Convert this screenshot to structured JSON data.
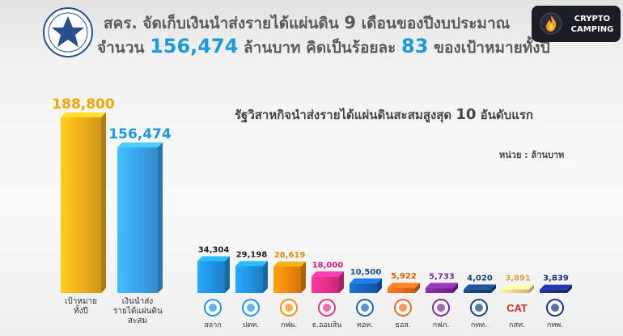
{
  "header": {
    "title_line1_prefix": "สคร. จัดเก็บเงินนำส่งรายได้แผ่นดิน",
    "title_line1_num": "9",
    "title_line1_suffix": "เดือนของปีงบประมาณ",
    "title_line2_prefix": "จำนวน",
    "title_line2_amount": "156,474",
    "title_line2_mid": "ล้านบาท คิดเป็นร้อยละ",
    "title_line2_pct": "83",
    "title_line2_suffix": "ของเป้าหมายทั้งปี"
  },
  "badge": {
    "line1": "CRYPTO",
    "line2": "CAMPING"
  },
  "chart_data": [
    {
      "type": "bar",
      "categories": [
        "เป้าหมายทั้งปี",
        "เงินนำส่งรายได้แผ่นดินสะสม"
      ],
      "category_lines": [
        [
          "เป้าหมาย",
          "ทั้งปี"
        ],
        [
          "เงินนำส่ง",
          "รายได้แผ่นดิน",
          "สะสม"
        ]
      ],
      "values": [
        188800,
        156474
      ],
      "labels": [
        "188,800",
        "156,474"
      ],
      "colors": [
        "#f5b21b",
        "#3aa6f0"
      ],
      "label_colors": [
        "#f0a500",
        "#1a9be0"
      ]
    },
    {
      "type": "bar",
      "title": "รัฐวิสาหกิจนำส่งรายได้แผ่นดินสะสมสูงสุด",
      "title_num": "10",
      "title_suffix": "อันดับแรก",
      "unit": "หน่วย : ล้านบาท",
      "categories": [
        "สลาก",
        "ปตท.",
        "กฟผ.",
        "ธ.ออมสิน",
        "ทอท.",
        "ธอส.",
        "กฟภ.",
        "กทท.",
        "กสท.",
        "กทพ."
      ],
      "values": [
        34304,
        29198,
        28619,
        18000,
        10500,
        5922,
        5733,
        4020,
        3891,
        3839
      ],
      "labels": [
        "34,304",
        "29,198",
        "28,619",
        "18,000",
        "10,500",
        "5,922",
        "5,733",
        "4,020",
        "3,891",
        "3,839"
      ],
      "colors": [
        "#2196e8",
        "#2196e8",
        "#f48c0c",
        "#ec2f8f",
        "#1565c0",
        "#ee6c1a",
        "#7b2a9a",
        "#16467e",
        "#f2cf8a",
        "#1a2f8c"
      ],
      "label_colors": [
        "#222222",
        "#222222",
        "#e08a00",
        "#d81b7a",
        "#1a4f9a",
        "#e65c00",
        "#7b2a9a",
        "#16467e",
        "#e0a040",
        "#1a2f8c"
      ],
      "logo_text": [
        "",
        "",
        "",
        "",
        "",
        "",
        "",
        "",
        "CAT",
        ""
      ]
    }
  ]
}
